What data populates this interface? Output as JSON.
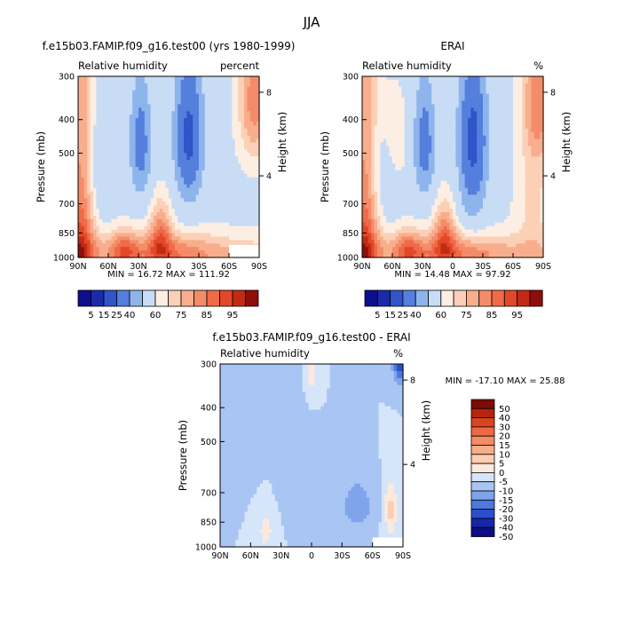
{
  "figure_title": "JJA",
  "stat_labels": {
    "min": "MIN",
    "max": "MAX"
  },
  "colors": {
    "full_scale": [
      "#0d0f8f",
      "#1b2aa8",
      "#2f55c8",
      "#557fdc",
      "#8eb4ec",
      "#c8dcf5",
      "#fdeee4",
      "#fbd0b6",
      "#f8ae8c",
      "#f48c6a",
      "#ef6a48",
      "#e24827",
      "#c22b13",
      "#8e0e0a"
    ],
    "diff_scale": [
      "#0a0e87",
      "#1726a6",
      "#2b4fc9",
      "#4d78dd",
      "#7fa4ec",
      "#a9c5f3",
      "#d6e6fa",
      "#fde9dc",
      "#fccdb3",
      "#f9ad8b",
      "#f48c67",
      "#ec6944",
      "#d9451f",
      "#b5250e",
      "#7d0b06"
    ]
  },
  "chart_data": [
    {
      "type": "heatmap",
      "title": "f.e15b03.FAMIP.f09_g16.test00 (yrs 1980-1999)",
      "variable": "Relative humidity",
      "units": "percent",
      "ylabel": "Pressure (mb)",
      "ylabel_right": "Height (km)",
      "x_ticks": [
        "90N",
        "60N",
        "30N",
        "0",
        "30S",
        "60S",
        "90S"
      ],
      "y_ticks": [
        "300",
        "400",
        "500",
        "700",
        "850",
        "1000"
      ],
      "y2_ticks": [
        "8",
        "4"
      ],
      "xlim": [
        90,
        -90
      ],
      "ylim": [
        1000,
        300
      ],
      "min": "16.72",
      "max": "111.92",
      "colorbar_labels": [
        "5",
        "15",
        "25",
        "40",
        "60",
        "75",
        "85",
        "95"
      ],
      "grid": false
    },
    {
      "type": "heatmap",
      "title": "ERAI",
      "variable": "Relative humidity",
      "units": "%",
      "ylabel": "Pressure (mb)",
      "ylabel_right": "Height (km)",
      "x_ticks": [
        "90N",
        "60N",
        "30N",
        "0",
        "30S",
        "60S",
        "90S"
      ],
      "y_ticks": [
        "300",
        "400",
        "500",
        "700",
        "850",
        "1000"
      ],
      "y2_ticks": [
        "8",
        "4"
      ],
      "xlim": [
        90,
        -90
      ],
      "ylim": [
        1000,
        300
      ],
      "min": "14.48",
      "max": "97.92",
      "colorbar_labels": [
        "5",
        "15",
        "25",
        "40",
        "60",
        "75",
        "85",
        "95"
      ],
      "grid": false
    },
    {
      "type": "heatmap",
      "title": "f.e15b03.FAMIP.f09_g16.test00 - ERAI",
      "variable": "Relative humidity",
      "units": "%",
      "ylabel": "Pressure (mb)",
      "ylabel_right": "Height (km)",
      "x_ticks": [
        "90N",
        "60N",
        "30N",
        "0",
        "30S",
        "60S",
        "90S"
      ],
      "y_ticks": [
        "300",
        "400",
        "500",
        "700",
        "850",
        "1000"
      ],
      "y2_ticks": [
        "8",
        "4"
      ],
      "xlim": [
        90,
        -90
      ],
      "ylim": [
        1000,
        300
      ],
      "min": "-17.10",
      "max": "25.88",
      "colorbar_labels": [
        "50",
        "40",
        "30",
        "20",
        "15",
        "10",
        "5",
        "0",
        "-5",
        "-10",
        "-15",
        "-20",
        "-30",
        "-40",
        "-50"
      ],
      "grid": false
    }
  ]
}
